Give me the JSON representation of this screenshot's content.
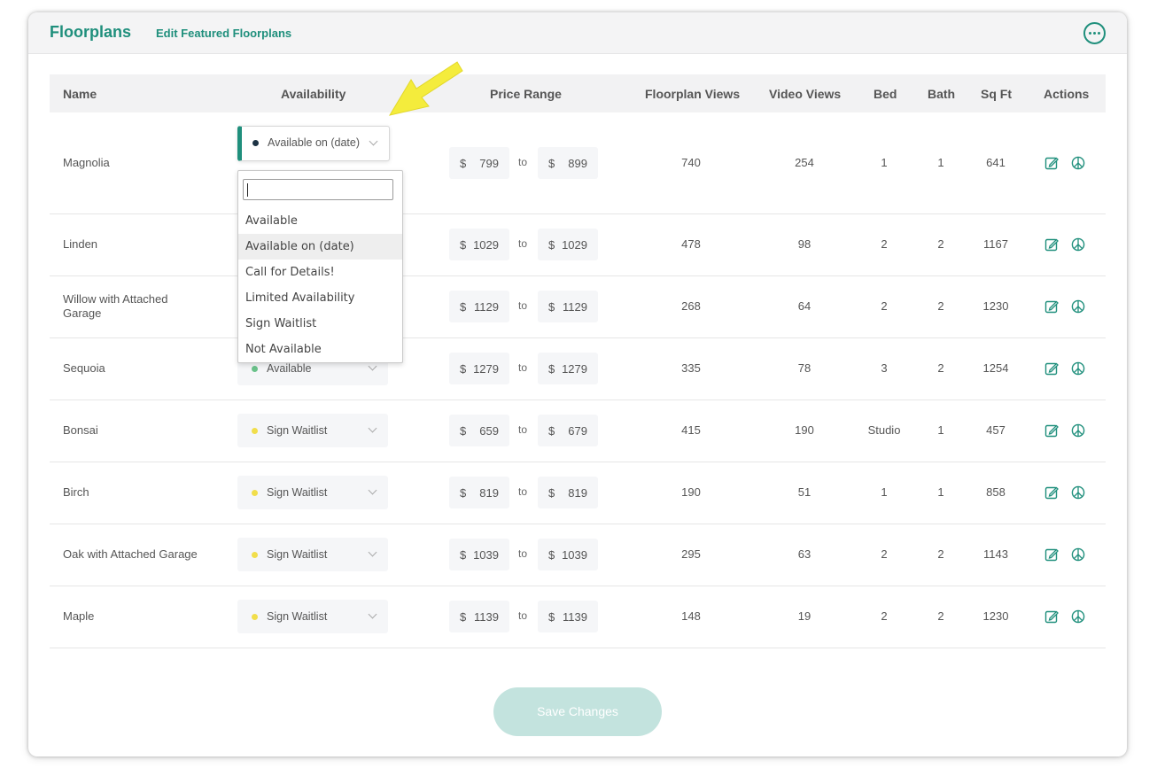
{
  "header": {
    "title": "Floorplans",
    "edit_link": "Edit Featured Floorplans",
    "more_icon": "more-dots-icon"
  },
  "columns": {
    "name": "Name",
    "availability": "Availability",
    "price_range": "Price Range",
    "floorplan_views": "Floorplan Views",
    "video_views": "Video Views",
    "bed": "Bed",
    "bath": "Bath",
    "sqft": "Sq Ft",
    "actions": "Actions"
  },
  "status_colors": {
    "Available on (date)": "#1d3344",
    "Available": "#6ac28a",
    "Sign Waitlist": "#f1de4b"
  },
  "price": {
    "currency": "$",
    "to": "to"
  },
  "rows": [
    {
      "name": "Magnolia",
      "availability": "Available on (date)",
      "price_min": "799",
      "price_max": "899",
      "floorplan_views": "740",
      "video_views": "254",
      "bed": "1",
      "bath": "1",
      "sqft": "641"
    },
    {
      "name": "Linden",
      "availability": "",
      "price_min": "1029",
      "price_max": "1029",
      "floorplan_views": "478",
      "video_views": "98",
      "bed": "2",
      "bath": "2",
      "sqft": "1167"
    },
    {
      "name": "Willow with Attached Garage",
      "availability": "",
      "price_min": "1129",
      "price_max": "1129",
      "floorplan_views": "268",
      "video_views": "64",
      "bed": "2",
      "bath": "2",
      "sqft": "1230"
    },
    {
      "name": "Sequoia",
      "availability": "Available",
      "price_min": "1279",
      "price_max": "1279",
      "floorplan_views": "335",
      "video_views": "78",
      "bed": "3",
      "bath": "2",
      "sqft": "1254"
    },
    {
      "name": "Bonsai",
      "availability": "Sign Waitlist",
      "price_min": "659",
      "price_max": "679",
      "floorplan_views": "415",
      "video_views": "190",
      "bed": "Studio",
      "bath": "1",
      "sqft": "457"
    },
    {
      "name": "Birch",
      "availability": "Sign Waitlist",
      "price_min": "819",
      "price_max": "819",
      "floorplan_views": "190",
      "video_views": "51",
      "bed": "1",
      "bath": "1",
      "sqft": "858"
    },
    {
      "name": "Oak with Attached Garage",
      "availability": "Sign Waitlist",
      "price_min": "1039",
      "price_max": "1039",
      "floorplan_views": "295",
      "video_views": "63",
      "bed": "2",
      "bath": "2",
      "sqft": "1143"
    },
    {
      "name": "Maple",
      "availability": "Sign Waitlist",
      "price_min": "1139",
      "price_max": "1139",
      "floorplan_views": "148",
      "video_views": "19",
      "bed": "2",
      "bath": "2",
      "sqft": "1230"
    }
  ],
  "dropdown": {
    "search_value": "",
    "options": [
      "Available",
      "Available on (date)",
      "Call for Details!",
      "Limited Availability",
      "Sign Waitlist",
      "Not Available"
    ],
    "active_option": "Available on (date)"
  },
  "save_button": "Save Changes",
  "accent_color": "#1f8f7c",
  "annotation_arrow_color": "#f4ec3c"
}
